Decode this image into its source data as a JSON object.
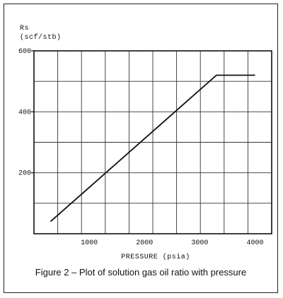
{
  "caption": "Figure 2 – Plot of solution gas oil ratio with pressure",
  "chart_data": {
    "type": "line",
    "title": "",
    "ylabel_line1": "Rs",
    "ylabel_line2": "(scf/stb)",
    "xlabel": "PRESSURE (psia)",
    "xlim": [
      0,
      4300
    ],
    "ylim": [
      0,
      600
    ],
    "x_ticks": [
      1000,
      2000,
      3000,
      4000
    ],
    "y_ticks": [
      200,
      400,
      600
    ],
    "grid": true,
    "series": [
      {
        "x": [
          300,
          3300,
          4000
        ],
        "y": [
          40,
          520,
          520
        ]
      }
    ]
  }
}
